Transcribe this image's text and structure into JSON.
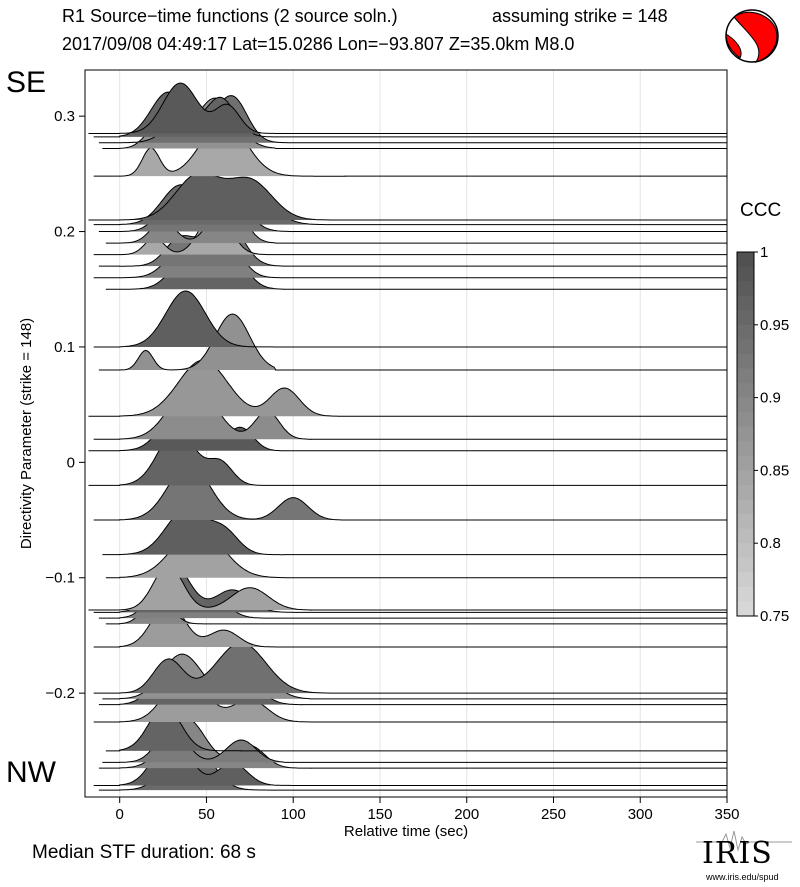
{
  "header": {
    "title": "R1 Source−time functions (2 source soln.)",
    "strike_note": "assuming strike = 148",
    "event_line": "2017/09/08 04:49:17  Lat=15.0286 Lon=−93.807  Z=35.0km  M8.0"
  },
  "labels": {
    "se": "SE",
    "nw": "NW",
    "median": "Median STF duration: 68 s"
  },
  "colorbar": {
    "title": "CCC",
    "ticks": [
      "1",
      "0.95",
      "0.9",
      "0.85",
      "0.8",
      "0.75"
    ],
    "range": [
      0.75,
      1.0
    ]
  },
  "logo": {
    "name": "IRIS",
    "url": "www.iris.edu/spud"
  },
  "colors": {
    "beachball_fill": "#ff0000",
    "line": "#000000",
    "grid": "#e4e4e4"
  },
  "chart_data": {
    "type": "area",
    "xlabel": "Relative time (sec)",
    "ylabel": "Directivity Parameter (strike = 148)",
    "xlim": [
      -20,
      350
    ],
    "ylim": [
      -0.29,
      0.34
    ],
    "xticks": [
      "0",
      "50",
      "100",
      "150",
      "200",
      "250",
      "300",
      "350"
    ],
    "yticks": [
      "0.3",
      "0.2",
      "0.1",
      "0",
      "−0.1",
      "−0.2"
    ],
    "grid": "vertical",
    "traces": [
      {
        "dir": 0.285,
        "start": -18,
        "ccc": 0.98,
        "pulses": [
          [
            35,
            0.9,
            14
          ],
          [
            62,
            0.5,
            10
          ]
        ],
        "end": 95
      },
      {
        "dir": 0.282,
        "start": -15,
        "ccc": 0.96,
        "pulses": [
          [
            28,
            0.8,
            14
          ],
          [
            58,
            0.7,
            12
          ]
        ],
        "end": 90
      },
      {
        "dir": 0.277,
        "start": -12,
        "ccc": 0.94,
        "pulses": [
          [
            40,
            0.6,
            15
          ],
          [
            65,
            0.8,
            12
          ]
        ],
        "end": 100
      },
      {
        "dir": 0.272,
        "start": -10,
        "ccc": 0.88,
        "pulses": [
          [
            22,
            0.4,
            10
          ],
          [
            55,
            0.9,
            16
          ]
        ],
        "end": 90
      },
      {
        "dir": 0.248,
        "start": -15,
        "ccc": 0.84,
        "pulses": [
          [
            18,
            0.5,
            7
          ],
          [
            60,
            1.0,
            18
          ]
        ],
        "end": 130
      },
      {
        "dir": 0.21,
        "start": -18,
        "ccc": 0.97,
        "pulses": [
          [
            45,
            0.8,
            18
          ],
          [
            75,
            0.7,
            18
          ]
        ],
        "end": 130
      },
      {
        "dir": 0.206,
        "start": -15,
        "ccc": 0.95,
        "pulses": [
          [
            35,
            0.7,
            15
          ],
          [
            72,
            0.8,
            18
          ]
        ],
        "end": 120
      },
      {
        "dir": 0.2,
        "start": -12,
        "ccc": 0.93,
        "pulses": [
          [
            30,
            0.5,
            12
          ],
          [
            60,
            0.9,
            15
          ]
        ],
        "end": 100
      },
      {
        "dir": 0.19,
        "start": -8,
        "ccc": 0.9,
        "pulses": [
          [
            25,
            0.4,
            10
          ],
          [
            62,
            0.9,
            12
          ]
        ],
        "end": 90
      },
      {
        "dir": 0.18,
        "start": -15,
        "ccc": 0.84,
        "pulses": [
          [
            20,
            0.3,
            8
          ],
          [
            55,
            0.8,
            12
          ]
        ],
        "end": 85
      },
      {
        "dir": 0.17,
        "start": -12,
        "ccc": 0.93,
        "pulses": [
          [
            35,
            0.5,
            12
          ],
          [
            60,
            0.9,
            14
          ]
        ],
        "end": 95
      },
      {
        "dir": 0.16,
        "start": -15,
        "ccc": 0.91,
        "pulses": [
          [
            40,
            0.7,
            15
          ],
          [
            62,
            0.6,
            12
          ]
        ],
        "end": 95
      },
      {
        "dir": 0.15,
        "start": -8,
        "ccc": 0.96,
        "pulses": [
          [
            40,
            0.6,
            14
          ],
          [
            60,
            0.9,
            14
          ]
        ],
        "end": 95
      },
      {
        "dir": 0.1,
        "start": -15,
        "ccc": 0.97,
        "pulses": [
          [
            38,
            1.0,
            16
          ]
        ],
        "end": 90
      },
      {
        "dir": 0.08,
        "start": -12,
        "ccc": 0.88,
        "pulses": [
          [
            15,
            0.35,
            6
          ],
          [
            65,
            1.0,
            14
          ]
        ],
        "end": 90
      },
      {
        "dir": 0.04,
        "start": -18,
        "ccc": 0.87,
        "pulses": [
          [
            48,
            1.0,
            20
          ],
          [
            95,
            0.5,
            12
          ]
        ],
        "end": 130
      },
      {
        "dir": 0.02,
        "start": -15,
        "ccc": 0.89,
        "pulses": [
          [
            42,
            1.0,
            18
          ],
          [
            85,
            0.5,
            10
          ]
        ],
        "end": 110
      },
      {
        "dir": 0.01,
        "start": -18,
        "ccc": 0.98,
        "pulses": [
          [
            38,
            1.0,
            16
          ],
          [
            70,
            0.4,
            10
          ]
        ],
        "end": 100
      },
      {
        "dir": -0.02,
        "start": -18,
        "ccc": 0.96,
        "pulses": [
          [
            33,
            1.0,
            15
          ],
          [
            58,
            0.4,
            10
          ]
        ],
        "end": 90
      },
      {
        "dir": -0.05,
        "start": -15,
        "ccc": 0.93,
        "pulses": [
          [
            40,
            1.0,
            17
          ],
          [
            100,
            0.4,
            12
          ]
        ],
        "end": 130
      },
      {
        "dir": -0.08,
        "start": -10,
        "ccc": 0.97,
        "pulses": [
          [
            38,
            0.8,
            16
          ],
          [
            60,
            0.4,
            12
          ]
        ],
        "end": 95
      },
      {
        "dir": -0.1,
        "start": -8,
        "ccc": 0.85,
        "pulses": [
          [
            45,
            0.9,
            20
          ]
        ],
        "end": 105
      },
      {
        "dir": -0.128,
        "start": -18,
        "ccc": 0.85,
        "pulses": [
          [
            28,
            0.8,
            12
          ],
          [
            75,
            0.4,
            15
          ]
        ],
        "end": 110
      },
      {
        "dir": -0.13,
        "start": -15,
        "ccc": 0.96,
        "pulses": [
          [
            30,
            0.9,
            14
          ],
          [
            65,
            0.4,
            14
          ]
        ],
        "end": 100
      },
      {
        "dir": -0.135,
        "start": -12,
        "ccc": 0.91,
        "pulses": [
          [
            26,
            0.7,
            12
          ],
          [
            55,
            0.3,
            12
          ]
        ],
        "end": 90
      },
      {
        "dir": -0.14,
        "start": -8,
        "ccc": 0.9,
        "pulses": [
          [
            22,
            0.6,
            10
          ]
        ],
        "end": 70
      },
      {
        "dir": -0.16,
        "start": -15,
        "ccc": 0.86,
        "pulses": [
          [
            28,
            0.8,
            13
          ],
          [
            60,
            0.3,
            12
          ]
        ],
        "end": 95
      },
      {
        "dir": -0.2,
        "start": -15,
        "ccc": 0.94,
        "pulses": [
          [
            28,
            0.6,
            12
          ],
          [
            70,
            0.9,
            20
          ]
        ],
        "end": 130
      },
      {
        "dir": -0.205,
        "start": -10,
        "ccc": 0.88,
        "pulses": [
          [
            36,
            0.8,
            16
          ],
          [
            80,
            0.4,
            14
          ]
        ],
        "end": 110
      },
      {
        "dir": -0.21,
        "start": -12,
        "ccc": 0.96,
        "pulses": [
          [
            30,
            0.7,
            14
          ],
          [
            70,
            0.5,
            14
          ]
        ],
        "end": 105
      },
      {
        "dir": -0.225,
        "start": -15,
        "ccc": 0.86,
        "pulses": [
          [
            38,
            0.9,
            16
          ],
          [
            75,
            0.4,
            14
          ]
        ],
        "end": 110
      },
      {
        "dir": -0.25,
        "start": -8,
        "ccc": 0.96,
        "pulses": [
          [
            26,
            0.8,
            13
          ]
        ],
        "end": 70
      },
      {
        "dir": -0.26,
        "start": -10,
        "ccc": 0.92,
        "pulses": [
          [
            30,
            0.6,
            12
          ],
          [
            70,
            0.4,
            12
          ]
        ],
        "end": 95
      },
      {
        "dir": -0.265,
        "start": -12,
        "ccc": 0.9,
        "pulses": [
          [
            38,
            0.9,
            16
          ],
          [
            75,
            0.4,
            12
          ]
        ],
        "end": 110
      },
      {
        "dir": -0.28,
        "start": -15,
        "ccc": 0.97,
        "pulses": [
          [
            30,
            0.9,
            14
          ],
          [
            65,
            0.4,
            12
          ]
        ],
        "end": 100
      },
      {
        "dir": -0.284,
        "start": -12,
        "ccc": 0.95,
        "pulses": [
          [
            40,
            1.0,
            16
          ]
        ],
        "end": 85
      }
    ]
  }
}
